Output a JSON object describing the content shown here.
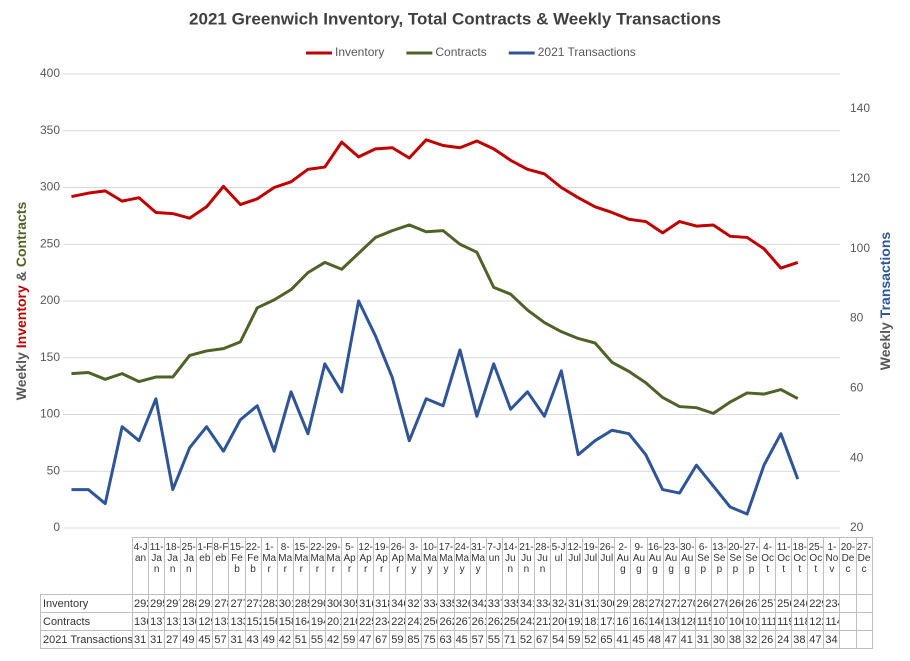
{
  "chart_data": {
    "type": "line",
    "title": "2021 Greenwich Inventory, Total Contracts & Weekly Transactions",
    "y_label_parts": [
      "Weekly",
      "Inventory",
      "&",
      "Contracts"
    ],
    "y2_label_parts": [
      "Weekly",
      "Transactions"
    ],
    "categories": [
      "4-Jan",
      "11-Jan",
      "18-Jan",
      "25-Jan",
      "1-Feb",
      "8-Feb",
      "15-Feb",
      "22-Feb",
      "1-Mar",
      "8-Mar",
      "15-Mar",
      "22-Mar",
      "29-Mar",
      "5-Apr",
      "12-Apr",
      "19-Apr",
      "26-Apr",
      "3-May",
      "10-May",
      "17-May",
      "24-May",
      "31-May",
      "7-Jun",
      "14-Jun",
      "21-Jun",
      "28-Jun",
      "5-Jul",
      "12-Jul",
      "19-Jul",
      "26-Jul",
      "2-Aug",
      "9-Aug",
      "16-Aug",
      "23-Aug",
      "30-Aug",
      "6-Sep",
      "13-Sep",
      "20-Sep",
      "27-Sep",
      "4-Oct",
      "11-Oct",
      "18-Oct",
      "25-Oct",
      "1-Nov",
      "20-Dec",
      "27-Dec"
    ],
    "series": [
      {
        "name": "Inventory",
        "color": "#c00000",
        "axis": "y",
        "values": [
          292,
          295,
          297,
          288,
          291,
          278,
          277,
          273,
          283,
          301,
          285,
          290,
          300,
          305,
          316,
          318,
          340,
          327,
          334,
          335,
          326,
          342,
          337,
          335,
          341,
          334,
          324,
          316,
          312,
          300,
          291,
          283,
          278,
          272,
          270,
          260,
          270,
          266,
          267,
          257,
          256,
          246,
          229,
          234,
          null,
          null
        ]
      },
      {
        "name": "Contracts",
        "color": "#4f6228",
        "axis": "y",
        "values": [
          136,
          137,
          131,
          136,
          129,
          133,
          133,
          152,
          156,
          158,
          164,
          194,
          201,
          210,
          225,
          234,
          228,
          242,
          256,
          262,
          267,
          261,
          262,
          250,
          243,
          212,
          206,
          192,
          181,
          173,
          167,
          163,
          146,
          138,
          128,
          115,
          107,
          106,
          101,
          111,
          119,
          118,
          122,
          114,
          null,
          null
        ]
      },
      {
        "name": "2021 Transactions",
        "color": "#2f5597",
        "axis": "y2",
        "values": [
          31,
          31,
          27,
          49,
          45,
          57,
          31,
          43,
          49,
          42,
          51,
          55,
          42,
          59,
          47,
          67,
          59,
          85,
          75,
          63,
          45,
          57,
          55,
          71,
          52,
          67,
          54,
          59,
          52,
          65,
          41,
          45,
          48,
          47,
          41,
          31,
          30,
          38,
          32,
          26,
          24,
          38,
          47,
          34,
          null,
          null
        ]
      }
    ],
    "ylim": [
      0,
      400
    ],
    "yticks": [
      0,
      50,
      100,
      150,
      200,
      250,
      300,
      350,
      400
    ],
    "y2lim": [
      20,
      150
    ],
    "y2ticks": [
      20,
      40,
      60,
      80,
      100,
      120,
      140
    ],
    "grid": true,
    "legend": "top"
  }
}
